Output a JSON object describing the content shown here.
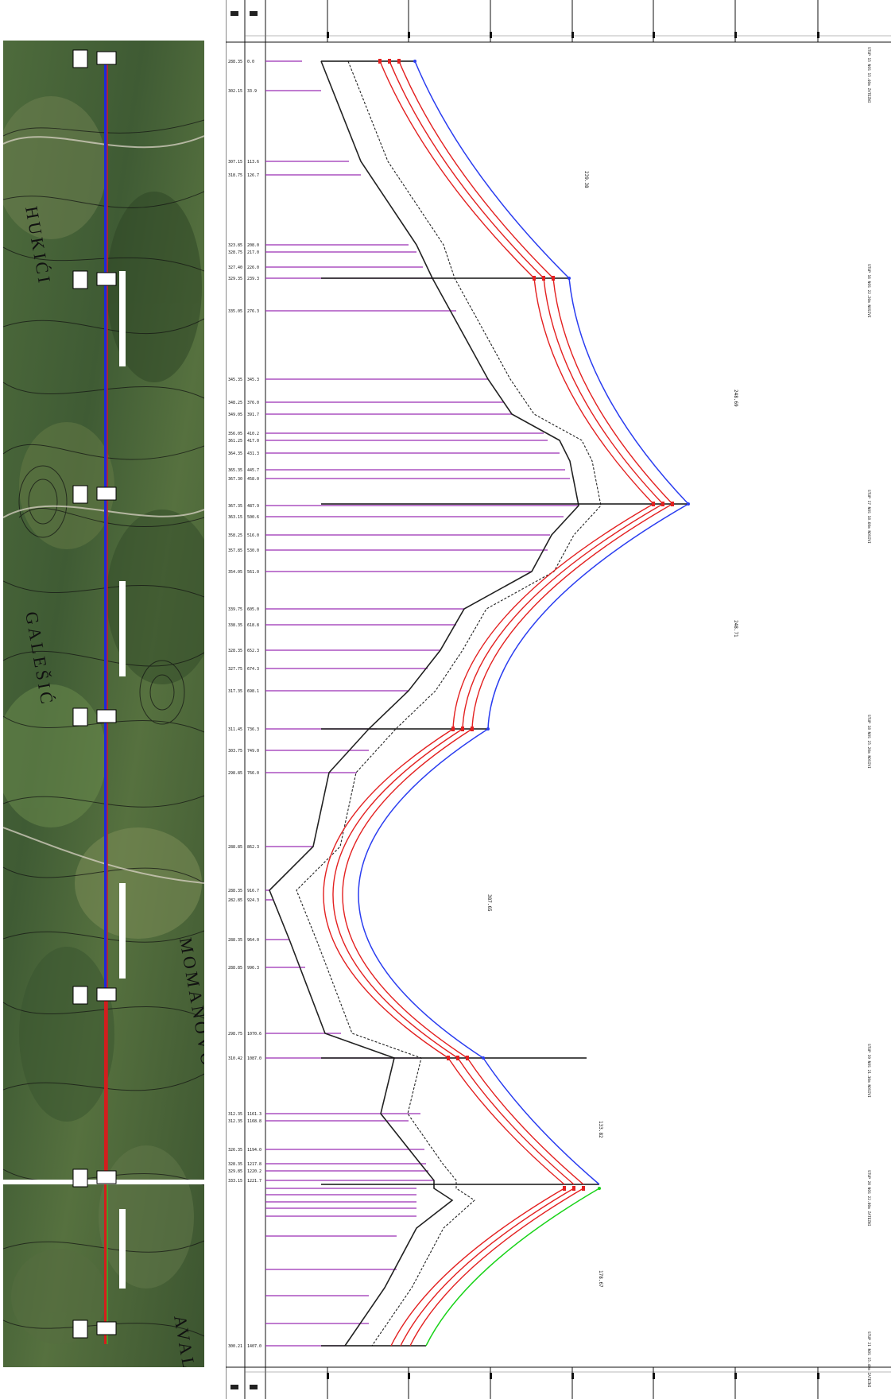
{
  "colors": {
    "conductor": "#e32020",
    "ground_wire": "#2a3df0",
    "ground_wire_last": "#19d319",
    "terrain": "#222222",
    "clearance": "#222222",
    "station_line": "#9b2fb4",
    "route_blue": "#1c2cd8",
    "route_red": "#d21e1e",
    "route_green": "#2cb52c",
    "map_green": "#4b6a3a"
  },
  "map": {
    "place_labels": [
      "HUKIĆI",
      "GALEŠIĆ",
      "MOMANOVO",
      "AVALA"
    ],
    "icons": [
      "tower-marker-icon",
      "contour-lines-icon",
      "route-line-icon"
    ]
  },
  "profile": {
    "span_lengths": [
      "239.38",
      "248.69",
      "248.71",
      "387.65",
      "133.82",
      "178.67"
    ],
    "tower_notes": [
      "STUP 15 NOS 15.40m ZATEZNI",
      "STUP 16 NOS 22.20m NOSIVI",
      "STUP 17 NOS 18.60m NOSIVI",
      "STUP 18 NOS 25.20m NOSIVI",
      "STUP 19 NOS 21.30m NOSIVI",
      "STUP 20 NOS 22.80m ZATEZNI",
      "STUP 21 NOS 15.40m ZATEZNI"
    ],
    "stations": [
      {
        "elev": "288.35",
        "dist": "0.0"
      },
      {
        "elev": "302.15",
        "dist": "33.9"
      },
      {
        "elev": "307.15",
        "dist": "113.6"
      },
      {
        "elev": "318.75",
        "dist": "126.7"
      },
      {
        "elev": "323.85",
        "dist": "208.0"
      },
      {
        "elev": "328.75",
        "dist": "217.0"
      },
      {
        "elev": "327.40",
        "dist": "226.0"
      },
      {
        "elev": "329.35",
        "dist": "239.3"
      },
      {
        "elev": "335.05",
        "dist": "276.3"
      },
      {
        "elev": "345.35",
        "dist": "345.3"
      },
      {
        "elev": "348.25",
        "dist": "376.0"
      },
      {
        "elev": "349.05",
        "dist": "391.7"
      },
      {
        "elev": "356.05",
        "dist": "410.2"
      },
      {
        "elev": "361.25",
        "dist": "417.0"
      },
      {
        "elev": "364.35",
        "dist": "431.3"
      },
      {
        "elev": "365.35",
        "dist": "445.7"
      },
      {
        "elev": "367.30",
        "dist": "458.0"
      },
      {
        "elev": "367.35",
        "dist": "487.9"
      },
      {
        "elev": "363.15",
        "dist": "500.6"
      },
      {
        "elev": "358.25",
        "dist": "516.0"
      },
      {
        "elev": "357.85",
        "dist": "530.0"
      },
      {
        "elev": "354.05",
        "dist": "561.0"
      },
      {
        "elev": "339.75",
        "dist": "605.0"
      },
      {
        "elev": "338.35",
        "dist": "618.8"
      },
      {
        "elev": "328.35",
        "dist": "652.3"
      },
      {
        "elev": "327.75",
        "dist": "674.3"
      },
      {
        "elev": "317.35",
        "dist": "698.1"
      },
      {
        "elev": "311.45",
        "dist": "736.3"
      },
      {
        "elev": "303.75",
        "dist": "749.0"
      },
      {
        "elev": "298.85",
        "dist": "766.0"
      },
      {
        "elev": "288.85",
        "dist": "862.3"
      },
      {
        "elev": "288.35",
        "dist": "916.7"
      },
      {
        "elev": "282.85",
        "dist": "924.3"
      },
      {
        "elev": "288.35",
        "dist": "964.0"
      },
      {
        "elev": "288.85",
        "dist": "996.3"
      },
      {
        "elev": "298.75",
        "dist": "1070.6"
      },
      {
        "elev": "310.42",
        "dist": "1087.0"
      },
      {
        "elev": "312.35",
        "dist": "1161.3"
      },
      {
        "elev": "312.35",
        "dist": "1168.8"
      },
      {
        "elev": "326.35",
        "dist": "1194.0"
      },
      {
        "elev": "328.35",
        "dist": "1217.8"
      },
      {
        "elev": "329.85",
        "dist": "1220.2"
      },
      {
        "elev": "333.15",
        "dist": "1221.7"
      },
      {
        "elev": "300.21",
        "dist": "1407.0"
      }
    ]
  }
}
